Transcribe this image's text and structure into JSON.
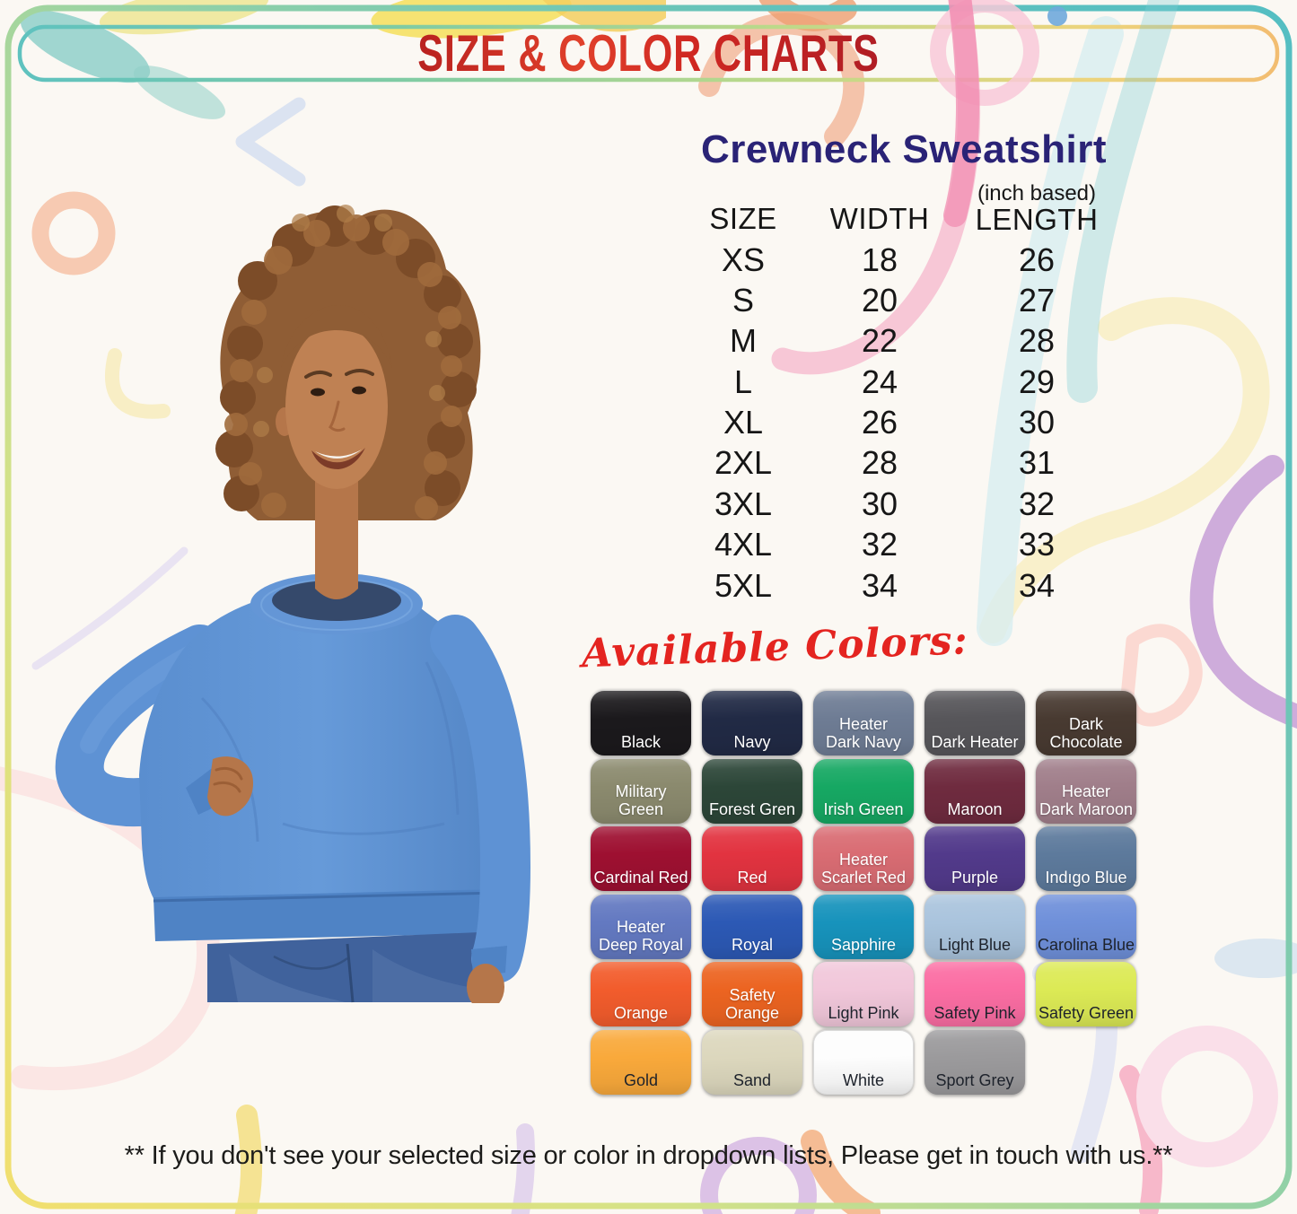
{
  "banner": {
    "title": "SIZE & COLOR CHARTS"
  },
  "product": {
    "name": "Crewneck Sweatshirt",
    "unit_note": "(inch based)"
  },
  "size_chart": {
    "columns": [
      "SIZE",
      "WIDTH",
      "LENGTH"
    ],
    "rows": [
      [
        "XS",
        "18",
        "26"
      ],
      [
        "S",
        "20",
        "27"
      ],
      [
        "M",
        "22",
        "28"
      ],
      [
        "L",
        "24",
        "29"
      ],
      [
        "XL",
        "26",
        "30"
      ],
      [
        "2XL",
        "28",
        "31"
      ],
      [
        "3XL",
        "30",
        "32"
      ],
      [
        "4XL",
        "32",
        "33"
      ],
      [
        "5XL",
        "34",
        "34"
      ]
    ]
  },
  "colors": {
    "heading": "Available Colors:",
    "swatches": [
      {
        "name": "Black",
        "label": "Black",
        "hex": "#1b191c",
        "label_dark": false
      },
      {
        "name": "Navy",
        "label": "Navy",
        "hex": "#212a45",
        "label_dark": false
      },
      {
        "name": "Heater Dark Navy",
        "label": "Heater\nDark Navy",
        "hex": "#6e7c94",
        "label_dark": false
      },
      {
        "name": "Dark Heater",
        "label": "Dark Heater",
        "hex": "#57565a",
        "label_dark": false
      },
      {
        "name": "Dark Chocolate",
        "label": "Dark Chocolate",
        "hex": "#483a31",
        "label_dark": false
      },
      {
        "name": "Military Green",
        "label": "Military Green",
        "hex": "#8b8a6e",
        "label_dark": false
      },
      {
        "name": "Forest Gren",
        "label": "Forest Gren",
        "hex": "#2c4638",
        "label_dark": false
      },
      {
        "name": "Irish Green",
        "label": "Irish Green",
        "hex": "#16a863",
        "label_dark": false
      },
      {
        "name": "Maroon",
        "label": "Maroon",
        "hex": "#6f2b3f",
        "label_dark": false
      },
      {
        "name": "Heater Dark Maroon",
        "label": "Heater\nDark Maroon",
        "hex": "#a07e8a",
        "label_dark": false
      },
      {
        "name": "Cardinal Red",
        "label": "Cardinal Red",
        "hex": "#9e1031",
        "label_dark": false
      },
      {
        "name": "Red",
        "label": "Red",
        "hex": "#e23340",
        "label_dark": false
      },
      {
        "name": "Heater Scarlet Red",
        "label": "Heater\nScarlet Red",
        "hex": "#d96c73",
        "label_dark": false
      },
      {
        "name": "Purple",
        "label": "Purple",
        "hex": "#523a8b",
        "label_dark": false
      },
      {
        "name": "Indıgo Blue",
        "label": "Indıgo Blue",
        "hex": "#5d7a9c",
        "label_dark": false
      },
      {
        "name": "Heater Deep Royal",
        "label": "Heater\nDeep Royal",
        "hex": "#6379c1",
        "label_dark": false
      },
      {
        "name": "Royal",
        "label": "Royal",
        "hex": "#2c59b5",
        "label_dark": false
      },
      {
        "name": "Sapphire",
        "label": "Sapphire",
        "hex": "#1793bc",
        "label_dark": false
      },
      {
        "name": "Light Blue",
        "label": "Light Blue",
        "hex": "#aac4dd",
        "label_dark": true
      },
      {
        "name": "Carolina Blue",
        "label": "Carolina Blue",
        "hex": "#6f90da",
        "label_dark": true
      },
      {
        "name": "Orange",
        "label": "Orange",
        "hex": "#f25c2c",
        "label_dark": false
      },
      {
        "name": "Safety Orange",
        "label": "Safety Orange",
        "hex": "#ec6421",
        "label_dark": false
      },
      {
        "name": "Light Pink",
        "label": "Light Pink",
        "hex": "#f1c7da",
        "label_dark": true
      },
      {
        "name": "Safety Pink",
        "label": "Safety Pink",
        "hex": "#fb6da3",
        "label_dark": true
      },
      {
        "name": "Safety Green",
        "label": "Safety Green",
        "hex": "#dcea55",
        "label_dark": true
      },
      {
        "name": "Gold",
        "label": "Gold",
        "hex": "#f9a93b",
        "label_dark": true
      },
      {
        "name": "Sand",
        "label": "Sand",
        "hex": "#dcd7bd",
        "label_dark": true
      },
      {
        "name": "White",
        "label": "White",
        "hex": "#fdfdfd",
        "label_dark": true,
        "outline": true
      },
      {
        "name": "Sport Grey",
        "label": "Sport Grey",
        "hex": "#9b9a9c",
        "label_dark": true
      }
    ]
  },
  "footer": {
    "note": "** If you don't see your selected size or color in dropdown lists, Please get in touch with us.**"
  }
}
